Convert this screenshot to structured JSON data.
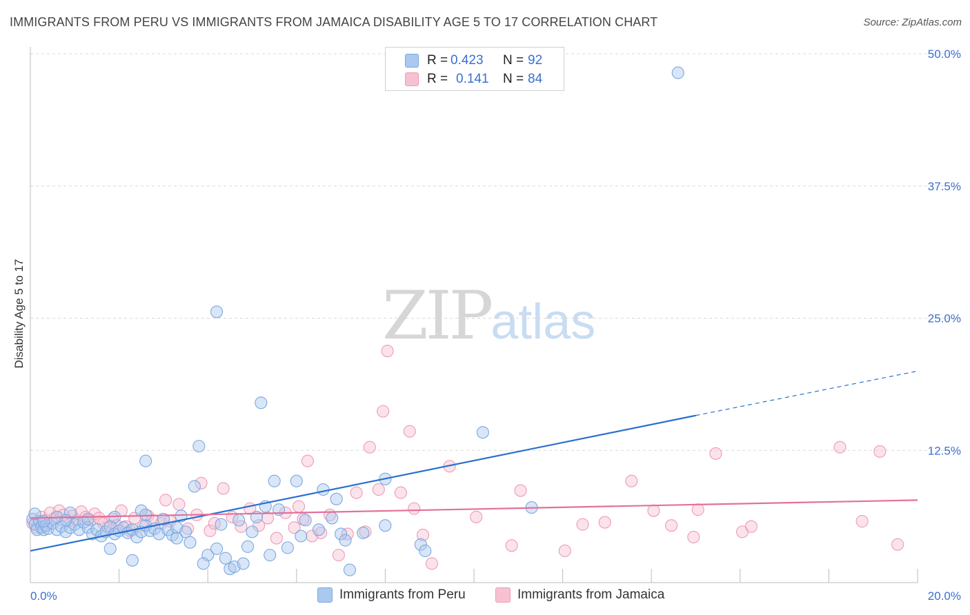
{
  "header": {
    "title": "IMMIGRANTS FROM PERU VS IMMIGRANTS FROM JAMAICA DISABILITY AGE 5 TO 17 CORRELATION CHART",
    "source": "Source: ZipAtlas.com"
  },
  "watermark": {
    "zip": "ZIP",
    "atlas": "atlas"
  },
  "legend": {
    "peru": {
      "r_label": "R =",
      "r_value": "0.423",
      "n_label": "N =",
      "n_value": "92",
      "name": "Immigrants from Peru"
    },
    "jamaica": {
      "r_label": "R =",
      "r_value": "0.141",
      "n_label": "N =",
      "n_value": "84",
      "name": "Immigrants from Jamaica"
    }
  },
  "colors": {
    "peru_fill": "#aac8f0",
    "peru_stroke": "#7aa8e0",
    "peru_line": "#2a6fd0",
    "jamaica_fill": "#f6c2d2",
    "jamaica_stroke": "#ee9ab5",
    "jamaica_line": "#e2709a",
    "tick_label": "#3a6fd0",
    "grid": "#d8d8d8"
  },
  "chart_data": {
    "type": "scatter",
    "title": "IMMIGRANTS FROM PERU VS IMMIGRANTS FROM JAMAICA DISABILITY AGE 5 TO 17 CORRELATION CHART",
    "xlabel": "",
    "ylabel": "Disability Age 5 to 17",
    "xlim": [
      0,
      20
    ],
    "ylim": [
      0,
      52
    ],
    "x_tick_labels": [
      {
        "value": 0,
        "label": "0.0%"
      },
      {
        "value": 20,
        "label": "20.0%"
      }
    ],
    "y_tick_labels": [
      {
        "value": 12.5,
        "label": "12.5%"
      },
      {
        "value": 25.0,
        "label": "25.0%"
      },
      {
        "value": 37.5,
        "label": "37.5%"
      },
      {
        "value": 50.0,
        "label": "50.0%"
      }
    ],
    "x_minor_ticks": [
      0,
      2,
      4,
      6,
      8,
      10,
      12,
      14,
      16,
      18,
      20
    ],
    "grid": "horizontal dashed",
    "legend_placement": "top-center and bottom",
    "series": [
      {
        "name": "Immigrants from Peru",
        "r": 0.423,
        "n": 92,
        "trend": {
          "x0": 0,
          "y0": 3.0,
          "x1": 15.0,
          "y1": 15.8,
          "dash_to_x": 20,
          "dash_to_y": 20.0
        },
        "points": [
          [
            0.05,
            6.0
          ],
          [
            0.1,
            5.5
          ],
          [
            0.15,
            5.0
          ],
          [
            0.2,
            5.8
          ],
          [
            0.25,
            5.2
          ],
          [
            0.3,
            5.0
          ],
          [
            0.35,
            5.4
          ],
          [
            0.4,
            5.1
          ],
          [
            0.5,
            5.6
          ],
          [
            0.6,
            5.0
          ],
          [
            0.7,
            5.3
          ],
          [
            0.8,
            4.8
          ],
          [
            0.9,
            5.2
          ],
          [
            1.0,
            5.5
          ],
          [
            1.1,
            5.0
          ],
          [
            1.2,
            5.7
          ],
          [
            1.3,
            5.2
          ],
          [
            1.4,
            4.6
          ],
          [
            1.5,
            5.0
          ],
          [
            1.6,
            4.4
          ],
          [
            1.7,
            4.8
          ],
          [
            1.8,
            5.3
          ],
          [
            1.9,
            4.6
          ],
          [
            2.0,
            4.9
          ],
          [
            2.1,
            5.2
          ],
          [
            2.2,
            4.7
          ],
          [
            2.3,
            5.0
          ],
          [
            2.4,
            4.3
          ],
          [
            2.5,
            4.8
          ],
          [
            2.6,
            5.4
          ],
          [
            2.7,
            4.9
          ],
          [
            2.8,
            5.1
          ],
          [
            2.9,
            4.6
          ],
          [
            3.0,
            6.0
          ],
          [
            3.1,
            5.0
          ],
          [
            3.2,
            4.5
          ],
          [
            3.3,
            5.2
          ],
          [
            3.4,
            6.3
          ],
          [
            3.5,
            4.8
          ],
          [
            3.6,
            3.8
          ],
          [
            0.1,
            6.5
          ],
          [
            0.3,
            5.8
          ],
          [
            0.6,
            6.2
          ],
          [
            0.9,
            6.6
          ],
          [
            1.3,
            6.0
          ],
          [
            1.9,
            6.2
          ],
          [
            2.5,
            6.8
          ],
          [
            3.7,
            9.1
          ],
          [
            3.8,
            12.9
          ],
          [
            4.2,
            25.6
          ],
          [
            5.2,
            17.0
          ],
          [
            10.2,
            14.2
          ],
          [
            14.6,
            48.2
          ],
          [
            2.6,
            11.5
          ],
          [
            2.6,
            6.4
          ],
          [
            4.0,
            2.6
          ],
          [
            4.2,
            3.2
          ],
          [
            4.4,
            2.3
          ],
          [
            4.5,
            1.3
          ],
          [
            4.6,
            1.5
          ],
          [
            4.8,
            1.8
          ],
          [
            5.0,
            4.8
          ],
          [
            5.4,
            2.6
          ],
          [
            5.8,
            3.3
          ],
          [
            6.0,
            9.6
          ],
          [
            6.2,
            5.9
          ],
          [
            6.6,
            8.8
          ],
          [
            6.9,
            7.9
          ],
          [
            7.0,
            4.6
          ],
          [
            7.2,
            1.2
          ],
          [
            7.5,
            4.7
          ],
          [
            8.0,
            5.4
          ],
          [
            8.0,
            9.8
          ],
          [
            7.1,
            4.0
          ],
          [
            8.8,
            3.6
          ],
          [
            8.9,
            3.0
          ],
          [
            11.3,
            7.1
          ],
          [
            1.8,
            3.2
          ],
          [
            2.3,
            2.1
          ],
          [
            3.9,
            1.8
          ],
          [
            4.9,
            3.4
          ],
          [
            5.5,
            9.6
          ],
          [
            5.6,
            6.9
          ],
          [
            6.8,
            6.1
          ],
          [
            4.3,
            5.5
          ],
          [
            4.7,
            5.9
          ],
          [
            5.1,
            6.2
          ],
          [
            5.3,
            7.2
          ],
          [
            6.1,
            4.4
          ],
          [
            6.5,
            5.0
          ],
          [
            3.3,
            4.2
          ],
          [
            0.8,
            5.9
          ]
        ]
      },
      {
        "name": "Immigrants from Jamaica",
        "r": 0.141,
        "n": 84,
        "trend": {
          "x0": 0,
          "y0": 6.1,
          "x1": 20,
          "y1": 7.8
        },
        "points": [
          [
            0.05,
            5.6
          ],
          [
            0.15,
            5.2
          ],
          [
            0.25,
            6.2
          ],
          [
            0.35,
            5.9
          ],
          [
            0.45,
            6.6
          ],
          [
            0.55,
            6.1
          ],
          [
            0.65,
            6.8
          ],
          [
            0.75,
            6.4
          ],
          [
            0.85,
            5.8
          ],
          [
            0.95,
            6.3
          ],
          [
            1.05,
            5.9
          ],
          [
            1.15,
            6.7
          ],
          [
            1.25,
            6.2
          ],
          [
            1.35,
            5.9
          ],
          [
            1.45,
            6.5
          ],
          [
            1.55,
            6.1
          ],
          [
            1.65,
            5.6
          ],
          [
            1.75,
            5.2
          ],
          [
            1.85,
            6.0
          ],
          [
            1.95,
            5.4
          ],
          [
            2.05,
            6.8
          ],
          [
            2.15,
            5.3
          ],
          [
            2.25,
            4.9
          ],
          [
            2.35,
            6.1
          ],
          [
            2.55,
            5.4
          ],
          [
            2.65,
            6.3
          ],
          [
            2.75,
            5.9
          ],
          [
            2.95,
            5.6
          ],
          [
            3.05,
            7.8
          ],
          [
            3.15,
            5.8
          ],
          [
            3.35,
            7.4
          ],
          [
            3.55,
            5.1
          ],
          [
            3.75,
            6.4
          ],
          [
            3.85,
            9.4
          ],
          [
            4.05,
            4.9
          ],
          [
            4.15,
            5.6
          ],
          [
            4.35,
            8.9
          ],
          [
            4.55,
            6.2
          ],
          [
            4.75,
            5.3
          ],
          [
            4.95,
            7.0
          ],
          [
            5.15,
            5.4
          ],
          [
            5.35,
            6.1
          ],
          [
            5.55,
            4.2
          ],
          [
            5.75,
            6.6
          ],
          [
            5.95,
            5.2
          ],
          [
            6.05,
            7.2
          ],
          [
            6.15,
            6.0
          ],
          [
            6.25,
            11.5
          ],
          [
            6.35,
            4.4
          ],
          [
            6.55,
            4.7
          ],
          [
            6.75,
            6.4
          ],
          [
            6.95,
            2.6
          ],
          [
            7.15,
            4.6
          ],
          [
            7.35,
            8.5
          ],
          [
            7.55,
            4.8
          ],
          [
            7.65,
            12.8
          ],
          [
            7.85,
            8.8
          ],
          [
            7.95,
            16.2
          ],
          [
            8.05,
            21.9
          ],
          [
            8.35,
            8.5
          ],
          [
            8.55,
            14.3
          ],
          [
            8.65,
            7.0
          ],
          [
            8.85,
            4.5
          ],
          [
            9.05,
            1.8
          ],
          [
            9.45,
            11.0
          ],
          [
            10.05,
            6.2
          ],
          [
            10.85,
            3.5
          ],
          [
            11.05,
            8.7
          ],
          [
            12.05,
            3.0
          ],
          [
            12.45,
            5.5
          ],
          [
            12.95,
            5.7
          ],
          [
            13.55,
            9.6
          ],
          [
            14.05,
            6.8
          ],
          [
            14.45,
            5.4
          ],
          [
            14.95,
            4.3
          ],
          [
            15.05,
            6.9
          ],
          [
            15.45,
            12.2
          ],
          [
            16.05,
            4.8
          ],
          [
            16.25,
            5.3
          ],
          [
            18.25,
            12.8
          ],
          [
            18.75,
            5.8
          ],
          [
            19.15,
            12.4
          ],
          [
            19.55,
            3.6
          ],
          [
            0.3,
            5.3
          ]
        ]
      }
    ]
  }
}
